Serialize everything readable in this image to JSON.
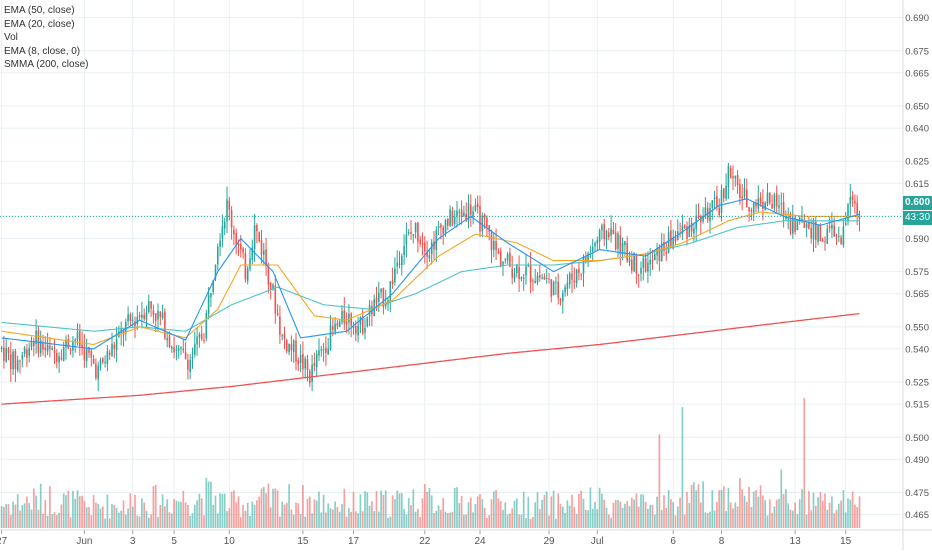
{
  "legend": {
    "items": [
      "EMA (50, close)",
      "EMA (20, close)",
      "Vol",
      "EMA (8, close, 0)",
      "SMMA (200, close)"
    ]
  },
  "price_axis": {
    "ticks": [
      "0.690",
      "0.675",
      "0.665",
      "0.650",
      "0.640",
      "0.625",
      "0.615",
      "0.600",
      "0.590",
      "0.575",
      "0.565",
      "0.550",
      "0.540",
      "0.525",
      "0.515",
      "0.500",
      "0.490",
      "0.475",
      "0.465"
    ],
    "last_price": "0.600",
    "countdown": "43:30"
  },
  "time_axis": {
    "ticks": [
      "27",
      "Jun",
      "3",
      "5",
      "10",
      "15",
      "17",
      "22",
      "24",
      "29",
      "Jul",
      "6",
      "8",
      "13",
      "15"
    ]
  },
  "colors": {
    "up": "#26a69a",
    "down": "#ef5350",
    "ema8": "#2196f3",
    "ema20": "#f5a623",
    "ema50": "#4fc3c7",
    "smma200": "#ef5350",
    "grid": "#e8f0f3",
    "axis_text": "#555555"
  },
  "chart_data": {
    "type": "candlestick",
    "y_range": [
      0.458,
      0.698
    ],
    "indicators": [
      "EMA (50, close)",
      "EMA (20, close)",
      "Vol",
      "EMA (8, close, 0)",
      "SMMA (200, close)"
    ],
    "price_anchors": [
      [
        0,
        0.54
      ],
      [
        6,
        0.533
      ],
      [
        14,
        0.545
      ],
      [
        22,
        0.537
      ],
      [
        32,
        0.545
      ],
      [
        42,
        0.53
      ],
      [
        54,
        0.55
      ],
      [
        64,
        0.56
      ],
      [
        70,
        0.552
      ],
      [
        76,
        0.538
      ],
      [
        82,
        0.535
      ],
      [
        88,
        0.548
      ],
      [
        94,
        0.59
      ],
      [
        98,
        0.605
      ],
      [
        102,
        0.59
      ],
      [
        106,
        0.575
      ],
      [
        110,
        0.595
      ],
      [
        114,
        0.583
      ],
      [
        118,
        0.565
      ],
      [
        122,
        0.545
      ],
      [
        128,
        0.538
      ],
      [
        134,
        0.528
      ],
      [
        142,
        0.545
      ],
      [
        150,
        0.555
      ],
      [
        156,
        0.55
      ],
      [
        162,
        0.56
      ],
      [
        168,
        0.565
      ],
      [
        174,
        0.587
      ],
      [
        180,
        0.594
      ],
      [
        186,
        0.585
      ],
      [
        192,
        0.597
      ],
      [
        198,
        0.6
      ],
      [
        204,
        0.604
      ],
      [
        210,
        0.595
      ],
      [
        216,
        0.582
      ],
      [
        222,
        0.577
      ],
      [
        228,
        0.575
      ],
      [
        236,
        0.572
      ],
      [
        242,
        0.565
      ],
      [
        246,
        0.57
      ],
      [
        252,
        0.577
      ],
      [
        258,
        0.588
      ],
      [
        264,
        0.594
      ],
      [
        270,
        0.585
      ],
      [
        276,
        0.578
      ],
      [
        282,
        0.578
      ],
      [
        288,
        0.586
      ],
      [
        294,
        0.592
      ],
      [
        300,
        0.596
      ],
      [
        306,
        0.601
      ],
      [
        312,
        0.605
      ],
      [
        316,
        0.62
      ],
      [
        320,
        0.612
      ],
      [
        326,
        0.605
      ],
      [
        332,
        0.608
      ],
      [
        338,
        0.604
      ],
      [
        344,
        0.597
      ],
      [
        350,
        0.597
      ],
      [
        356,
        0.59
      ],
      [
        362,
        0.594
      ],
      [
        365,
        0.585
      ],
      [
        368,
        0.605
      ],
      [
        370,
        0.607
      ],
      [
        373,
        0.6
      ]
    ],
    "volume_profile": [
      [
        0,
        0.2
      ],
      [
        20,
        0.25
      ],
      [
        40,
        0.18
      ],
      [
        60,
        0.22
      ],
      [
        80,
        0.25
      ],
      [
        90,
        0.28
      ],
      [
        100,
        0.2
      ],
      [
        120,
        0.25
      ],
      [
        140,
        0.22
      ],
      [
        160,
        0.2
      ],
      [
        180,
        0.24
      ],
      [
        200,
        0.22
      ],
      [
        220,
        0.2
      ],
      [
        240,
        0.2
      ],
      [
        260,
        0.22
      ],
      [
        280,
        0.18
      ],
      [
        300,
        0.25
      ],
      [
        320,
        0.3
      ],
      [
        340,
        0.22
      ],
      [
        373,
        0.2
      ]
    ],
    "volume_spikes": {
      "286": 0.72,
      "296": 0.93,
      "339": 0.45,
      "349": 1.0
    },
    "ema8_anchors": [
      [
        0,
        0.545
      ],
      [
        40,
        0.54
      ],
      [
        60,
        0.553
      ],
      [
        80,
        0.544
      ],
      [
        94,
        0.575
      ],
      [
        104,
        0.59
      ],
      [
        118,
        0.575
      ],
      [
        130,
        0.545
      ],
      [
        150,
        0.548
      ],
      [
        170,
        0.565
      ],
      [
        190,
        0.59
      ],
      [
        204,
        0.6
      ],
      [
        220,
        0.588
      ],
      [
        240,
        0.575
      ],
      [
        260,
        0.585
      ],
      [
        280,
        0.582
      ],
      [
        296,
        0.593
      ],
      [
        312,
        0.605
      ],
      [
        324,
        0.608
      ],
      [
        340,
        0.6
      ],
      [
        356,
        0.596
      ],
      [
        373,
        0.601
      ]
    ],
    "ema20_anchors": [
      [
        0,
        0.548
      ],
      [
        40,
        0.542
      ],
      [
        60,
        0.55
      ],
      [
        80,
        0.545
      ],
      [
        94,
        0.558
      ],
      [
        104,
        0.578
      ],
      [
        120,
        0.578
      ],
      [
        136,
        0.555
      ],
      [
        150,
        0.553
      ],
      [
        170,
        0.562
      ],
      [
        190,
        0.582
      ],
      [
        206,
        0.592
      ],
      [
        224,
        0.588
      ],
      [
        240,
        0.58
      ],
      [
        260,
        0.58
      ],
      [
        280,
        0.583
      ],
      [
        296,
        0.588
      ],
      [
        316,
        0.598
      ],
      [
        330,
        0.602
      ],
      [
        350,
        0.6
      ],
      [
        373,
        0.6
      ]
    ],
    "ema50_anchors": [
      [
        0,
        0.552
      ],
      [
        40,
        0.548
      ],
      [
        60,
        0.55
      ],
      [
        80,
        0.548
      ],
      [
        100,
        0.56
      ],
      [
        120,
        0.568
      ],
      [
        140,
        0.56
      ],
      [
        160,
        0.558
      ],
      [
        180,
        0.565
      ],
      [
        200,
        0.575
      ],
      [
        220,
        0.578
      ],
      [
        240,
        0.578
      ],
      [
        260,
        0.58
      ],
      [
        280,
        0.583
      ],
      [
        300,
        0.588
      ],
      [
        320,
        0.595
      ],
      [
        340,
        0.598
      ],
      [
        373,
        0.598
      ]
    ],
    "smma200_anchors": [
      [
        0,
        0.515
      ],
      [
        60,
        0.519
      ],
      [
        100,
        0.523
      ],
      [
        140,
        0.528
      ],
      [
        180,
        0.533
      ],
      [
        220,
        0.538
      ],
      [
        260,
        0.542
      ],
      [
        300,
        0.547
      ],
      [
        340,
        0.552
      ],
      [
        373,
        0.556
      ]
    ],
    "total_bars": 374
  }
}
